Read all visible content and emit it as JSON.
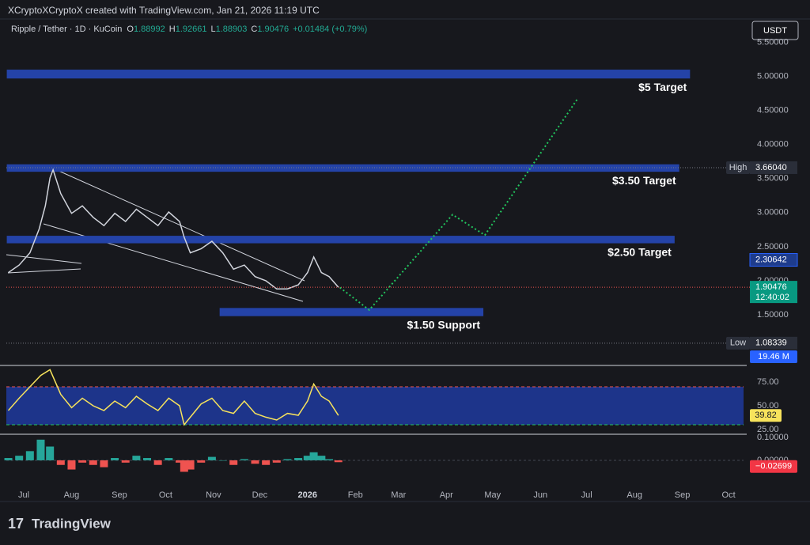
{
  "header": {
    "attribution": "XCryptoXCryptoX created with TradingView.com, Jan 21, 2026 11:19 UTC",
    "symbol": "Ripple / Tether · 1D · KuCoin",
    "ohlc": [
      {
        "key": "O",
        "value": "1.88992"
      },
      {
        "key": "H",
        "value": "1.92661"
      },
      {
        "key": "L",
        "value": "1.88903"
      },
      {
        "key": "C",
        "value": "1.90476"
      }
    ],
    "change": "+0.01484 (+0.79%)",
    "currency": "USDT"
  },
  "chart_data": [
    {
      "type": "line",
      "x": [
        -10,
        -3,
        4,
        10,
        14,
        17,
        19,
        24,
        31,
        38,
        45,
        52,
        59,
        66,
        73,
        80,
        87,
        94,
        101,
        104,
        108,
        115,
        122,
        129,
        136,
        143,
        150,
        157,
        164,
        171,
        178,
        184,
        188,
        193,
        198,
        204
      ],
      "series": [
        {
          "color": "#d1d4dc",
          "values": [
            2.12,
            2.23,
            2.41,
            2.76,
            3.1,
            3.51,
            3.63,
            3.28,
            2.99,
            3.1,
            2.93,
            2.81,
            2.99,
            2.87,
            3.05,
            2.93,
            2.81,
            3.01,
            2.87,
            2.64,
            2.41,
            2.47,
            2.58,
            2.41,
            2.17,
            2.23,
            2.06,
            2.0,
            1.88,
            1.88,
            1.94,
            2.12,
            2.35,
            2.12,
            2.06,
            1.90476
          ]
        }
      ],
      "projection": {
        "color": "#22c55e",
        "x": [
          205,
          224,
          278,
          299,
          359
        ],
        "values": [
          1.9,
          1.57,
          2.97,
          2.67,
          4.67
        ]
      },
      "zones": [
        {
          "label": "$5 Target",
          "from": 4.97,
          "to": 5.1,
          "x0": -11,
          "x1": 432
        },
        {
          "label": "$3.50 Target",
          "from": 3.6,
          "to": 3.71,
          "x0": -11,
          "x1": 425
        },
        {
          "label": "$2.50 Target",
          "from": 2.55,
          "to": 2.66,
          "x0": -11,
          "x1": 422
        },
        {
          "label": "$1.50 Support",
          "from": 1.48,
          "to": 1.6,
          "x0": 127,
          "x1": 298
        }
      ],
      "zone_color": "#2443a8",
      "xlim": [
        -11.3,
        466.7
      ],
      "ylim": [
        0.756,
        5.6
      ],
      "xticks": [
        {
          "value": 0,
          "label": "Jul"
        },
        {
          "value": 31,
          "label": "Aug"
        },
        {
          "value": 62,
          "label": "Sep"
        },
        {
          "value": 92,
          "label": "Oct"
        },
        {
          "value": 123,
          "label": "Nov"
        },
        {
          "value": 153,
          "label": "Dec"
        },
        {
          "value": 184,
          "label": "2026"
        },
        {
          "value": 215,
          "label": "Feb"
        },
        {
          "value": 243,
          "label": "Mar"
        },
        {
          "value": 274,
          "label": "Apr"
        },
        {
          "value": 304,
          "label": "May"
        },
        {
          "value": 335,
          "label": "Jun"
        },
        {
          "value": 365,
          "label": "Jul"
        },
        {
          "value": 396,
          "label": "Aug"
        },
        {
          "value": 427,
          "label": "Sep"
        },
        {
          "value": 457,
          "label": "Oct"
        }
      ],
      "yticks": [
        {
          "value": 5.5,
          "label": "5.50000"
        },
        {
          "value": 5,
          "label": "5.00000"
        },
        {
          "value": 4.5,
          "label": "4.50000"
        },
        {
          "value": 4,
          "label": "4.00000"
        },
        {
          "value": 3.5,
          "label": "3.50000"
        },
        {
          "value": 3,
          "label": "3.00000"
        },
        {
          "value": 2.5,
          "label": "2.50000"
        },
        {
          "value": 2,
          "label": "2.00000"
        },
        {
          "value": 1.5,
          "label": "1.50000"
        }
      ],
      "price_labels": [
        {
          "tag": "High",
          "value": 3.6604,
          "label": "3.66040",
          "color": "#2a2e39"
        },
        {
          "value": 2.30642,
          "label": "2.30642",
          "color": "#1e3c8c"
        },
        {
          "value": 1.90476,
          "label": "1.90476",
          "timer": "12:40:02",
          "color": "#089981"
        },
        {
          "tag": "Low",
          "value": 1.08339,
          "label": "1.08339",
          "color": "#2a2e39"
        }
      ],
      "volume_label": "19.46 M"
    },
    {
      "type": "line",
      "x": [
        -10,
        -3,
        4,
        11,
        17,
        24,
        31,
        38,
        45,
        52,
        59,
        66,
        73,
        80,
        87,
        94,
        101,
        104,
        108,
        115,
        122,
        129,
        136,
        143,
        150,
        157,
        164,
        171,
        178,
        184,
        188,
        193,
        198,
        204
      ],
      "series": [
        {
          "color": "#f7e35c",
          "values": [
            45,
            58,
            70,
            82,
            88,
            62,
            48,
            58,
            50,
            45,
            55,
            48,
            60,
            52,
            45,
            58,
            50,
            30,
            38,
            52,
            58,
            45,
            42,
            55,
            42,
            38,
            35,
            42,
            40,
            55,
            73,
            60,
            55,
            39.82
          ]
        }
      ],
      "ylim": [
        20.8,
        91.7
      ],
      "yticks": [
        {
          "value": 75,
          "label": "75.00"
        },
        {
          "value": 50,
          "label": "50.00"
        },
        {
          "value": 25,
          "label": "25.00"
        }
      ],
      "band": [
        30,
        70
      ],
      "band_color": "#1f3a9e",
      "last_value": 39.82
    },
    {
      "type": "bar",
      "x": [
        -10,
        -3,
        4,
        11,
        17,
        24,
        31,
        38,
        45,
        52,
        59,
        66,
        73,
        80,
        87,
        94,
        101,
        104,
        108,
        115,
        122,
        129,
        136,
        143,
        150,
        157,
        164,
        171,
        178,
        184,
        188,
        193,
        198,
        204
      ],
      "values": [
        0.01,
        0.02,
        0.04,
        0.09,
        0.06,
        -0.02,
        -0.04,
        -0.01,
        -0.02,
        -0.03,
        0.01,
        -0.01,
        0.02,
        0.01,
        -0.02,
        0.01,
        -0.01,
        -0.05,
        -0.04,
        -0.01,
        0.015,
        0,
        -0.02,
        0.005,
        -0.015,
        -0.02,
        -0.01,
        0.005,
        0.01,
        0.02,
        0.035,
        0.02,
        0.005,
        -0.008
      ],
      "colors": {
        "positive": "#26a69a",
        "negative": "#ef5350"
      },
      "ylim": [
        -0.0966,
        0.11
      ],
      "yticks": [
        {
          "value": 0.1,
          "label": "0.10000"
        },
        {
          "value": 0,
          "label": "0.00000"
        }
      ],
      "last_value": {
        "value": -0.02699,
        "label": "−0.02699"
      }
    }
  ],
  "footer": {
    "logo": "TradingView"
  }
}
